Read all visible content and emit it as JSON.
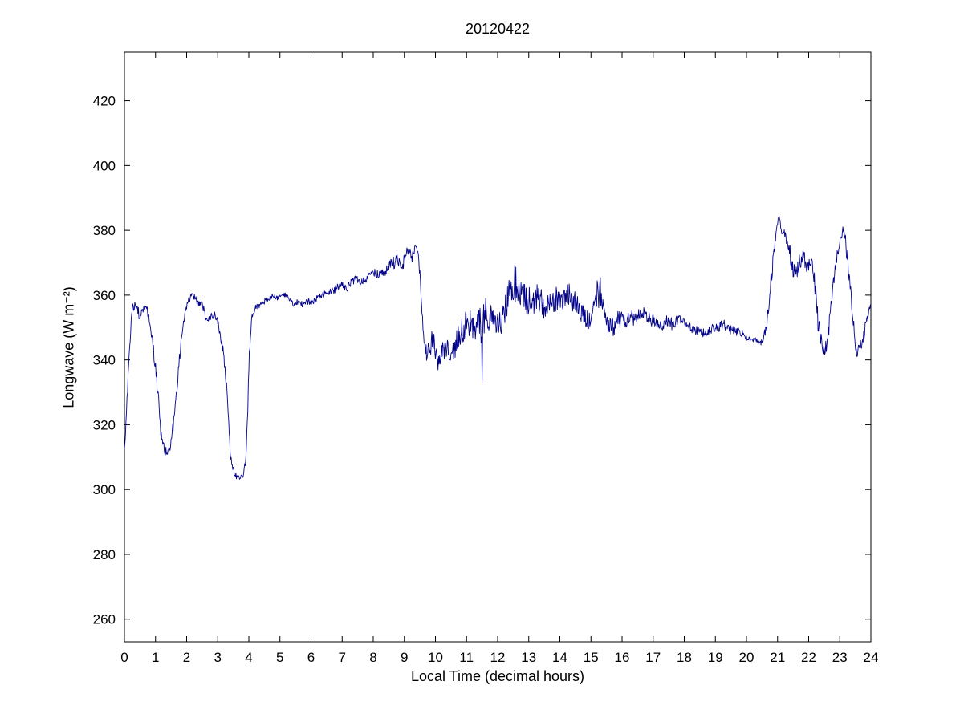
{
  "chart_data": {
    "type": "line",
    "title": "20120422",
    "xlabel": "Local Time (decimal hours)",
    "ylabel": "Longwave (W m⁻²)",
    "xlim": [
      0,
      24
    ],
    "ylim": [
      253,
      435
    ],
    "xticks": [
      0,
      1,
      2,
      3,
      4,
      5,
      6,
      7,
      8,
      9,
      10,
      11,
      12,
      13,
      14,
      15,
      16,
      17,
      18,
      19,
      20,
      21,
      22,
      23,
      24
    ],
    "yticks": [
      260,
      280,
      300,
      320,
      340,
      360,
      380,
      400,
      420
    ],
    "grid": false,
    "legend_position": "none",
    "line_color": "#00008B",
    "axes_color": "#000000",
    "background": "#ffffff",
    "sampling_minutes": 1,
    "noise_seed": 20120422,
    "series": [
      {
        "name": "longwave",
        "anchors_t_value_noise": [
          [
            0,
            313,
            1
          ],
          [
            0.05,
            320,
            1.5
          ],
          [
            0.15,
            342,
            2
          ],
          [
            0.25,
            355,
            2
          ],
          [
            0.35,
            358,
            1.5
          ],
          [
            0.5,
            353,
            2
          ],
          [
            0.6,
            356,
            1.5
          ],
          [
            0.7,
            357,
            1.5
          ],
          [
            0.8,
            352,
            2
          ],
          [
            0.9,
            345,
            2
          ],
          [
            1,
            338,
            2
          ],
          [
            1.1,
            327,
            2
          ],
          [
            1.2,
            314,
            2
          ],
          [
            1.3,
            312,
            1.5
          ],
          [
            1.4,
            311,
            1.5
          ],
          [
            1.5,
            314,
            2
          ],
          [
            1.6,
            323,
            2
          ],
          [
            1.7,
            332,
            2
          ],
          [
            1.8,
            344,
            2
          ],
          [
            1.9,
            352,
            2
          ],
          [
            2,
            357,
            1.5
          ],
          [
            2.1,
            359,
            1
          ],
          [
            2.2,
            360,
            1
          ],
          [
            2.35,
            358,
            1
          ],
          [
            2.5,
            357,
            1
          ],
          [
            2.6,
            354,
            1.5
          ],
          [
            2.7,
            352,
            1.5
          ],
          [
            2.8,
            354,
            1.5
          ],
          [
            2.9,
            354,
            1
          ],
          [
            3,
            352,
            1
          ],
          [
            3.1,
            347,
            1.5
          ],
          [
            3.2,
            341,
            1.5
          ],
          [
            3.3,
            330,
            2
          ],
          [
            3.4,
            312,
            2
          ],
          [
            3.5,
            306,
            1
          ],
          [
            3.6,
            304,
            0.8
          ],
          [
            3.7,
            303.5,
            0.8
          ],
          [
            3.8,
            304,
            0.8
          ],
          [
            3.9,
            309,
            1.5
          ],
          [
            3.95,
            320,
            2
          ],
          [
            4,
            337,
            2
          ],
          [
            4.05,
            348,
            2
          ],
          [
            4.1,
            353,
            1.5
          ],
          [
            4.2,
            356,
            1
          ],
          [
            4.35,
            357,
            1
          ],
          [
            4.5,
            358,
            1
          ],
          [
            4.65,
            359,
            1
          ],
          [
            4.8,
            360,
            1
          ],
          [
            5,
            359,
            1
          ],
          [
            5.15,
            360,
            1
          ],
          [
            5.3,
            359,
            1
          ],
          [
            5.45,
            357,
            1
          ],
          [
            5.6,
            358,
            1
          ],
          [
            5.75,
            357,
            1
          ],
          [
            5.9,
            358,
            1
          ],
          [
            6.05,
            358,
            1
          ],
          [
            6.2,
            359,
            1
          ],
          [
            6.35,
            360,
            1
          ],
          [
            6.5,
            361,
            1
          ],
          [
            6.65,
            361,
            1
          ],
          [
            6.8,
            362,
            1.2
          ],
          [
            7,
            363,
            1.2
          ],
          [
            7.15,
            362,
            1.2
          ],
          [
            7.3,
            364,
            1.2
          ],
          [
            7.45,
            365,
            1.2
          ],
          [
            7.6,
            364,
            1.2
          ],
          [
            7.75,
            365,
            1.2
          ],
          [
            7.9,
            366,
            1.2
          ],
          [
            8.05,
            367,
            1.2
          ],
          [
            8.2,
            366,
            1.5
          ],
          [
            8.35,
            367,
            1.5
          ],
          [
            8.5,
            369,
            1.5
          ],
          [
            8.65,
            370,
            2
          ],
          [
            8.8,
            371,
            2
          ],
          [
            8.95,
            369,
            2
          ],
          [
            9.05,
            373,
            2
          ],
          [
            9.15,
            374,
            1.5
          ],
          [
            9.25,
            371,
            2
          ],
          [
            9.35,
            375,
            1
          ],
          [
            9.45,
            374,
            1.5
          ],
          [
            9.5,
            366,
            3
          ],
          [
            9.6,
            348,
            3
          ],
          [
            9.7,
            343,
            3
          ],
          [
            9.8,
            342,
            3
          ],
          [
            9.9,
            347,
            3
          ],
          [
            10,
            343,
            3
          ],
          [
            10.1,
            339,
            3
          ],
          [
            10.2,
            342,
            3
          ],
          [
            10.35,
            344,
            3.5
          ],
          [
            10.5,
            341,
            3.5
          ],
          [
            10.65,
            345,
            4
          ],
          [
            10.8,
            348,
            4
          ],
          [
            10.95,
            350,
            4.5
          ],
          [
            11.1,
            352,
            5
          ],
          [
            11.25,
            349,
            5
          ],
          [
            11.4,
            352,
            5.5
          ],
          [
            11.47,
            350,
            5
          ],
          [
            11.5,
            335,
            3
          ],
          [
            11.53,
            352,
            5
          ],
          [
            11.6,
            354,
            5.5
          ],
          [
            11.75,
            352,
            5
          ],
          [
            11.9,
            354,
            5
          ],
          [
            12.05,
            350,
            4.5
          ],
          [
            12.2,
            355,
            5
          ],
          [
            12.35,
            360,
            5
          ],
          [
            12.5,
            364,
            6
          ],
          [
            12.65,
            362,
            6
          ],
          [
            12.8,
            360,
            6
          ],
          [
            12.95,
            358,
            5
          ],
          [
            13.1,
            357,
            5
          ],
          [
            13.25,
            360,
            5
          ],
          [
            13.4,
            358,
            5
          ],
          [
            13.55,
            357,
            4.5
          ],
          [
            13.7,
            358,
            4
          ],
          [
            13.85,
            359,
            4
          ],
          [
            14,
            358,
            4
          ],
          [
            14.15,
            359,
            4
          ],
          [
            14.3,
            360,
            4
          ],
          [
            14.45,
            358,
            4
          ],
          [
            14.6,
            356,
            3.5
          ],
          [
            14.75,
            354,
            3
          ],
          [
            14.9,
            352,
            3
          ],
          [
            15.05,
            354,
            3
          ],
          [
            15.2,
            360,
            5
          ],
          [
            15.3,
            362,
            5
          ],
          [
            15.45,
            354,
            3.5
          ],
          [
            15.55,
            351,
            3
          ],
          [
            15.7,
            350,
            3
          ],
          [
            15.85,
            352,
            3
          ],
          [
            16,
            353,
            2.5
          ],
          [
            16.1,
            352,
            2.5
          ],
          [
            16.25,
            354,
            2.5
          ],
          [
            16.4,
            352,
            2
          ],
          [
            16.55,
            354,
            2
          ],
          [
            16.7,
            355,
            2
          ],
          [
            16.85,
            353,
            2
          ],
          [
            17,
            352,
            2
          ],
          [
            17.15,
            351,
            2
          ],
          [
            17.3,
            350,
            2
          ],
          [
            17.45,
            352,
            2
          ],
          [
            17.6,
            351,
            2
          ],
          [
            17.75,
            352,
            1.8
          ],
          [
            17.9,
            352,
            1.8
          ],
          [
            18.05,
            351,
            1.5
          ],
          [
            18.2,
            350,
            1.5
          ],
          [
            18.35,
            349,
            1.5
          ],
          [
            18.5,
            349,
            1.5
          ],
          [
            18.65,
            348,
            1.5
          ],
          [
            18.8,
            349,
            1.5
          ],
          [
            18.95,
            350,
            1.5
          ],
          [
            19.1,
            350,
            1.5
          ],
          [
            19.25,
            351,
            1.5
          ],
          [
            19.4,
            350,
            1.5
          ],
          [
            19.55,
            349,
            1.5
          ],
          [
            19.7,
            349,
            1.5
          ],
          [
            19.85,
            348,
            1.5
          ],
          [
            20,
            347,
            1.5
          ],
          [
            20.15,
            346,
            1.2
          ],
          [
            20.3,
            346,
            1
          ],
          [
            20.45,
            345,
            1
          ],
          [
            20.55,
            347,
            1.5
          ],
          [
            20.65,
            351,
            2.5
          ],
          [
            20.75,
            360,
            3
          ],
          [
            20.85,
            370,
            3
          ],
          [
            20.95,
            379,
            2
          ],
          [
            21,
            383,
            1.5
          ],
          [
            21.05,
            384,
            1
          ],
          [
            21.15,
            379,
            2
          ],
          [
            21.25,
            378,
            2
          ],
          [
            21.35,
            375,
            2.5
          ],
          [
            21.45,
            371,
            3
          ],
          [
            21.55,
            366,
            3
          ],
          [
            21.65,
            368,
            3
          ],
          [
            21.75,
            371,
            3
          ],
          [
            21.85,
            372,
            2.5
          ],
          [
            21.95,
            367,
            3
          ],
          [
            22.05,
            370,
            2
          ],
          [
            22.1,
            372,
            1.5
          ],
          [
            22.2,
            363,
            3
          ],
          [
            22.3,
            352,
            3
          ],
          [
            22.4,
            346,
            2.5
          ],
          [
            22.5,
            343,
            2
          ],
          [
            22.6,
            345,
            2.5
          ],
          [
            22.7,
            354,
            3
          ],
          [
            22.8,
            365,
            3
          ],
          [
            22.9,
            372,
            2.5
          ],
          [
            23,
            375,
            2
          ],
          [
            23.1,
            381,
            1.5
          ],
          [
            23.15,
            379,
            2
          ],
          [
            23.25,
            371,
            3
          ],
          [
            23.35,
            360,
            3
          ],
          [
            23.45,
            350,
            2.5
          ],
          [
            23.55,
            342,
            2
          ],
          [
            23.65,
            344,
            2
          ],
          [
            23.75,
            347,
            2
          ],
          [
            23.85,
            351,
            2
          ],
          [
            23.95,
            355,
            1.5
          ],
          [
            24,
            357,
            1
          ]
        ]
      }
    ]
  }
}
